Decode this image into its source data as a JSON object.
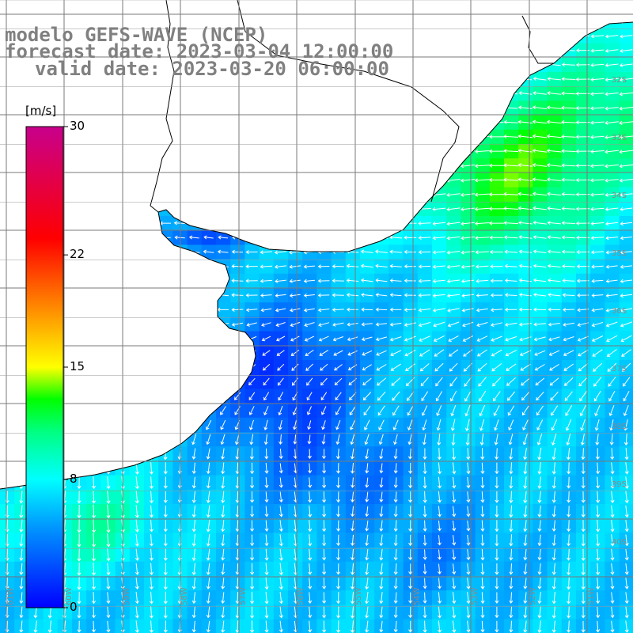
{
  "titles": {
    "model": "modelo GEFS-WAVE (NCEP)",
    "forecast": "forecast date: 2023-03-04 12:00:00",
    "valid": "valid date: 2023-03-20 06:00:00"
  },
  "colorbar": {
    "unit": "[m/s]",
    "ticks": [
      {
        "value": 30,
        "label": "30"
      },
      {
        "value": 22,
        "label": "22"
      },
      {
        "value": 15,
        "label": "15"
      },
      {
        "value": 8,
        "label": "8"
      },
      {
        "value": 0,
        "label": "0"
      }
    ],
    "scale_stops": [
      {
        "value": 0,
        "color": "#0000ff"
      },
      {
        "value": 5,
        "color": "#0096ff"
      },
      {
        "value": 8,
        "color": "#00ffff"
      },
      {
        "value": 11,
        "color": "#00ff80"
      },
      {
        "value": 13,
        "color": "#00ff00"
      },
      {
        "value": 15,
        "color": "#ffff00"
      },
      {
        "value": 19,
        "color": "#ff8000"
      },
      {
        "value": 23,
        "color": "#ff0000"
      },
      {
        "value": 30,
        "color": "#c8008c"
      }
    ]
  },
  "grid": {
    "lat_labels": [
      "32S",
      "33S",
      "34S",
      "35S",
      "36S",
      "37S",
      "38S",
      "39S",
      "40S"
    ],
    "lon_labels": [
      "61W",
      "60W",
      "59W",
      "58W",
      "57W",
      "56W",
      "55W",
      "54W",
      "53W",
      "52W",
      "51W"
    ]
  },
  "map": {
    "land_color": "#ffffff",
    "sea_mask": "no-data",
    "arrow_color": "#ffffff"
  },
  "legend_colors": {
    "low": "#0000ff",
    "mid": "#00ffff",
    "high": "#ff0000"
  }
}
